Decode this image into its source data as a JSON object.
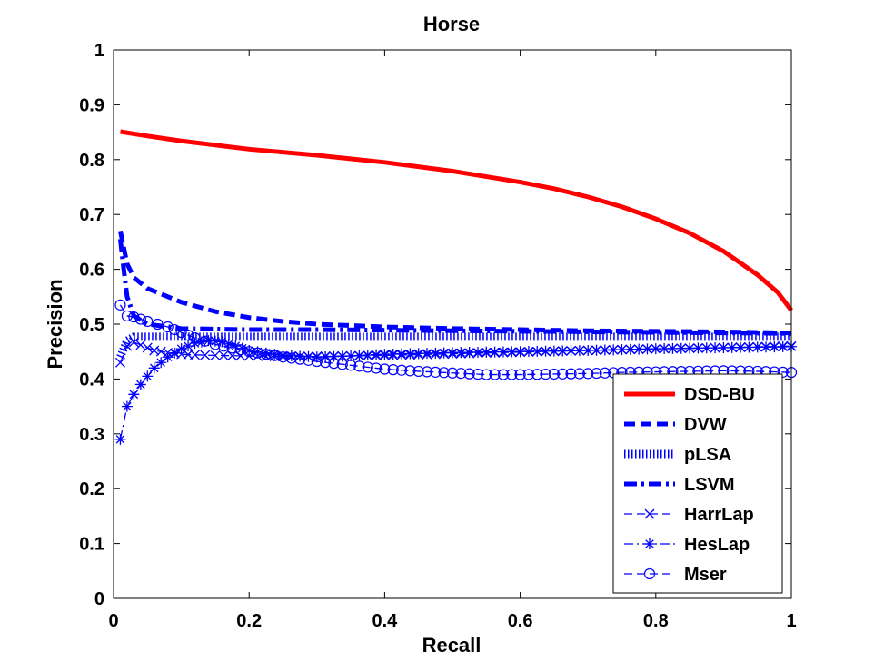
{
  "chart_data": {
    "type": "line",
    "title": "Horse",
    "xlabel": "Recall",
    "ylabel": "Precision",
    "xlim": [
      0,
      1
    ],
    "ylim": [
      0,
      1
    ],
    "xticks": [
      "0",
      "0.2",
      "0.4",
      "0.6",
      "0.8",
      "1"
    ],
    "yticks": [
      "0",
      "0.1",
      "0.2",
      "0.3",
      "0.4",
      "0.5",
      "0.6",
      "0.7",
      "0.8",
      "0.9",
      "1"
    ],
    "grid": false,
    "legend_position": "bottom-right",
    "series": [
      {
        "name": "DSD-BU",
        "color": "#ff0000",
        "style": "solid-thick",
        "marker": "none",
        "x": [
          0.01,
          0.05,
          0.1,
          0.2,
          0.3,
          0.4,
          0.5,
          0.6,
          0.65,
          0.7,
          0.75,
          0.8,
          0.85,
          0.9,
          0.95,
          0.98,
          1.0
        ],
        "y": [
          0.851,
          0.843,
          0.834,
          0.819,
          0.808,
          0.795,
          0.779,
          0.759,
          0.747,
          0.732,
          0.714,
          0.692,
          0.666,
          0.633,
          0.59,
          0.558,
          0.525
        ]
      },
      {
        "name": "DVW",
        "color": "#0000ff",
        "style": "dashed-thick",
        "marker": "none",
        "x": [
          0.01,
          0.015,
          0.02,
          0.03,
          0.05,
          0.1,
          0.15,
          0.2,
          0.25,
          0.3,
          0.4,
          0.5,
          0.6,
          0.7,
          0.8,
          0.9,
          1.0
        ],
        "y": [
          0.67,
          0.64,
          0.61,
          0.585,
          0.565,
          0.54,
          0.523,
          0.512,
          0.505,
          0.5,
          0.495,
          0.492,
          0.49,
          0.488,
          0.487,
          0.486,
          0.484
        ]
      },
      {
        "name": "pLSA",
        "color": "#0000ff",
        "style": "dotted-band",
        "marker": "none",
        "x": [
          0.01,
          0.02,
          0.03,
          0.05,
          0.1,
          0.2,
          0.4,
          0.6,
          0.8,
          1.0
        ],
        "y": [
          0.44,
          0.47,
          0.477,
          0.477,
          0.477,
          0.477,
          0.477,
          0.477,
          0.477,
          0.477
        ]
      },
      {
        "name": "LSVM",
        "color": "#0000ff",
        "style": "dashdot-thick",
        "marker": "none",
        "x": [
          0.01,
          0.015,
          0.02,
          0.03,
          0.05,
          0.1,
          0.2,
          0.3,
          0.4,
          0.5,
          0.6,
          0.7,
          0.8,
          0.9,
          1.0
        ],
        "y": [
          0.655,
          0.6,
          0.55,
          0.515,
          0.5,
          0.492,
          0.49,
          0.49,
          0.489,
          0.488,
          0.487,
          0.486,
          0.485,
          0.484,
          0.483
        ]
      },
      {
        "name": "HarrLap",
        "color": "#0000ff",
        "style": "dashed-thin",
        "marker": "x",
        "x": [
          0.01,
          0.02,
          0.03,
          0.04,
          0.06,
          0.08,
          0.1,
          0.12,
          0.15,
          0.2,
          0.25,
          0.3,
          0.35,
          0.4,
          0.5,
          0.6,
          0.7,
          0.8,
          0.9,
          1.0
        ],
        "y": [
          0.43,
          0.46,
          0.467,
          0.462,
          0.452,
          0.448,
          0.445,
          0.444,
          0.443,
          0.442,
          0.441,
          0.441,
          0.442,
          0.443,
          0.446,
          0.449,
          0.452,
          0.455,
          0.457,
          0.46
        ]
      },
      {
        "name": "HesLap",
        "color": "#0000ff",
        "style": "dashdot-thin",
        "marker": "star",
        "x": [
          0.01,
          0.02,
          0.03,
          0.04,
          0.05,
          0.06,
          0.08,
          0.1,
          0.12,
          0.14,
          0.16,
          0.18,
          0.2,
          0.25,
          0.3,
          0.35,
          0.4,
          0.5,
          0.6,
          0.7,
          0.8,
          0.9,
          1.0
        ],
        "y": [
          0.29,
          0.35,
          0.372,
          0.39,
          0.405,
          0.42,
          0.44,
          0.455,
          0.465,
          0.47,
          0.468,
          0.46,
          0.452,
          0.443,
          0.44,
          0.442,
          0.445,
          0.448,
          0.45,
          0.452,
          0.455,
          0.457,
          0.459
        ]
      },
      {
        "name": "Mser",
        "color": "#0000ff",
        "style": "dashed-thin",
        "marker": "circle",
        "x": [
          0.01,
          0.02,
          0.03,
          0.05,
          0.08,
          0.1,
          0.12,
          0.15,
          0.2,
          0.25,
          0.3,
          0.35,
          0.4,
          0.45,
          0.5,
          0.55,
          0.6,
          0.65,
          0.7,
          0.75,
          0.8,
          0.85,
          0.9,
          0.95,
          1.0
        ],
        "y": [
          0.535,
          0.515,
          0.513,
          0.505,
          0.495,
          0.485,
          0.475,
          0.463,
          0.45,
          0.44,
          0.432,
          0.425,
          0.418,
          0.414,
          0.411,
          0.408,
          0.408,
          0.409,
          0.41,
          0.412,
          0.413,
          0.414,
          0.415,
          0.414,
          0.412
        ]
      }
    ]
  }
}
